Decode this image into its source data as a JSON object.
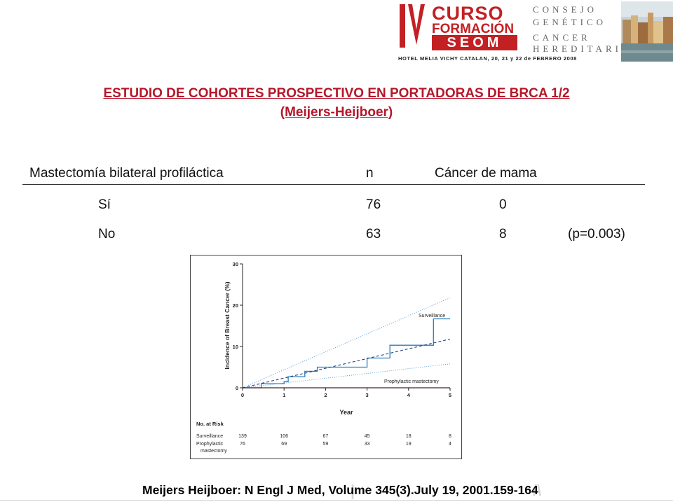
{
  "header": {
    "roman_numeral": "IV",
    "curso_line1": "CURSO",
    "curso_line2": "FORMACIÓN",
    "seom": "SEOM",
    "consejo_line1": "CONSEJO",
    "consejo_line2": "GENÉTICO",
    "consejo_line3": "CANCER",
    "consejo_line4": "HEREDITARIO",
    "hotel_line": "HOTEL MELIA VICHY CATALAN, 20, 21 y 22 de FEBRERO 2008"
  },
  "title": {
    "line1": "ESTUDIO DE COHORTES PROSPECTIVO EN PORTADORAS DE BRCA 1/2",
    "line2": "(Meijers-Heijboer)"
  },
  "table": {
    "headers": {
      "group": "Mastectomía bilateral profiláctica",
      "n": "n",
      "cancer": "Cáncer de mama"
    },
    "rows": [
      {
        "group": "Sí",
        "n": "76",
        "cancer": "0",
        "p": ""
      },
      {
        "group": "No",
        "n": "63",
        "cancer": "8",
        "p": "(p=0.003)"
      }
    ]
  },
  "figure": {
    "ylabel": "Incidence of Breast Cancer (%)",
    "xlabel": "Year",
    "y_ticks": [
      "0",
      "10",
      "20",
      "30"
    ],
    "x_ticks": [
      "0",
      "1",
      "2",
      "3",
      "4",
      "5"
    ],
    "surveillance_label": "Surveillance",
    "prophylactic_label": "Prophylactic mastectomy",
    "colors": {
      "surveillance": "#2a7fb8",
      "prophylactic": "#d4332e",
      "ci": "#4a8fd0",
      "trend": "#1c3f8a"
    },
    "risk": {
      "title": "No. at Risk",
      "rows": [
        {
          "label": "Surveillance",
          "values": [
            "139",
            "106",
            "67",
            "45",
            "18",
            "8"
          ]
        },
        {
          "label": "Prophylactic",
          "label2": "mastectomy",
          "values": [
            "76",
            "69",
            "59",
            "33",
            "19",
            "4"
          ]
        }
      ]
    }
  },
  "citation": "Meijers Heijboer: N Engl J Med, Volume 345(3).July 19, 2001.159-164",
  "chart_data": {
    "type": "line",
    "title": "",
    "xlabel": "Year",
    "ylabel": "Incidence of Breast Cancer (%)",
    "xlim": [
      0,
      5
    ],
    "ylim": [
      0,
      30
    ],
    "grid": false,
    "series": [
      {
        "name": "Surveillance",
        "style": "step",
        "x": [
          0,
          0.45,
          0.45,
          1.0,
          1.0,
          1.1,
          1.1,
          1.5,
          1.5,
          1.8,
          1.8,
          3.0,
          3.0,
          3.55,
          3.55,
          4.6,
          4.6,
          5.0
        ],
        "y": [
          0,
          0,
          1.0,
          1.0,
          1.5,
          1.5,
          2.7,
          2.7,
          4.0,
          4.0,
          5.0,
          5.0,
          7.2,
          7.2,
          10.3,
          10.3,
          16.7,
          16.7
        ]
      },
      {
        "name": "Prophylactic mastectomy",
        "x": [
          0,
          5
        ],
        "y": [
          0,
          0
        ]
      },
      {
        "name": "",
        "style": "dashed",
        "x": [
          0,
          5
        ],
        "y": [
          0,
          11.8
        ]
      },
      {
        "name": "",
        "style": "dotted",
        "x": [
          0,
          5
        ],
        "y": [
          0,
          21.8
        ]
      },
      {
        "name": "",
        "style": "dotted",
        "x": [
          0,
          5
        ],
        "y": [
          0,
          5.8
        ]
      }
    ]
  }
}
